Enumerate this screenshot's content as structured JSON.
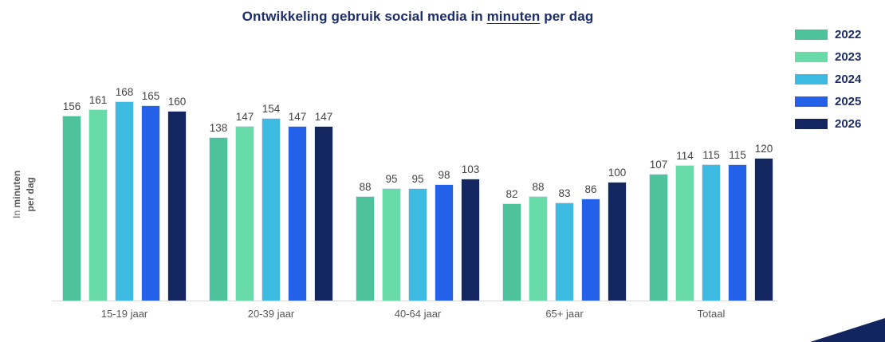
{
  "title": {
    "prefix": "Ontwikkeling gebruik social media in ",
    "underlined": "minuten",
    "suffix": " per dag"
  },
  "y_axis_label": {
    "in_word": "In",
    "minuten_word": "minuten",
    "per_dag": "per dag"
  },
  "chart_data": {
    "type": "bar",
    "title": "Ontwikkeling gebruik social media in minuten per dag",
    "ylabel": "In minuten per dag",
    "xlabel": "",
    "categories": [
      "15-19 jaar",
      "20-39 jaar",
      "40-64 jaar",
      "65+ jaar",
      "Totaal"
    ],
    "series": [
      {
        "name": "2022",
        "color": "#4EC29B",
        "values": [
          156,
          138,
          88,
          82,
          107
        ]
      },
      {
        "name": "2023",
        "color": "#69DBA8",
        "values": [
          161,
          147,
          95,
          88,
          114
        ]
      },
      {
        "name": "2024",
        "color": "#3DBBE3",
        "values": [
          168,
          154,
          95,
          83,
          115
        ]
      },
      {
        "name": "2025",
        "color": "#2361E9",
        "values": [
          165,
          147,
          98,
          86,
          115
        ]
      },
      {
        "name": "2026",
        "color": "#13265F",
        "values": [
          160,
          147,
          103,
          100,
          120
        ]
      }
    ],
    "ylim": [
      0,
      175
    ],
    "grid": false,
    "legend_position": "top-right",
    "value_labels": true
  },
  "colors": {
    "title_text": "#1B2D6B",
    "value_label": "#444444",
    "axis_label": "#595959",
    "baseline": "#D9D9D9",
    "corner_wedge": "#13255E"
  }
}
